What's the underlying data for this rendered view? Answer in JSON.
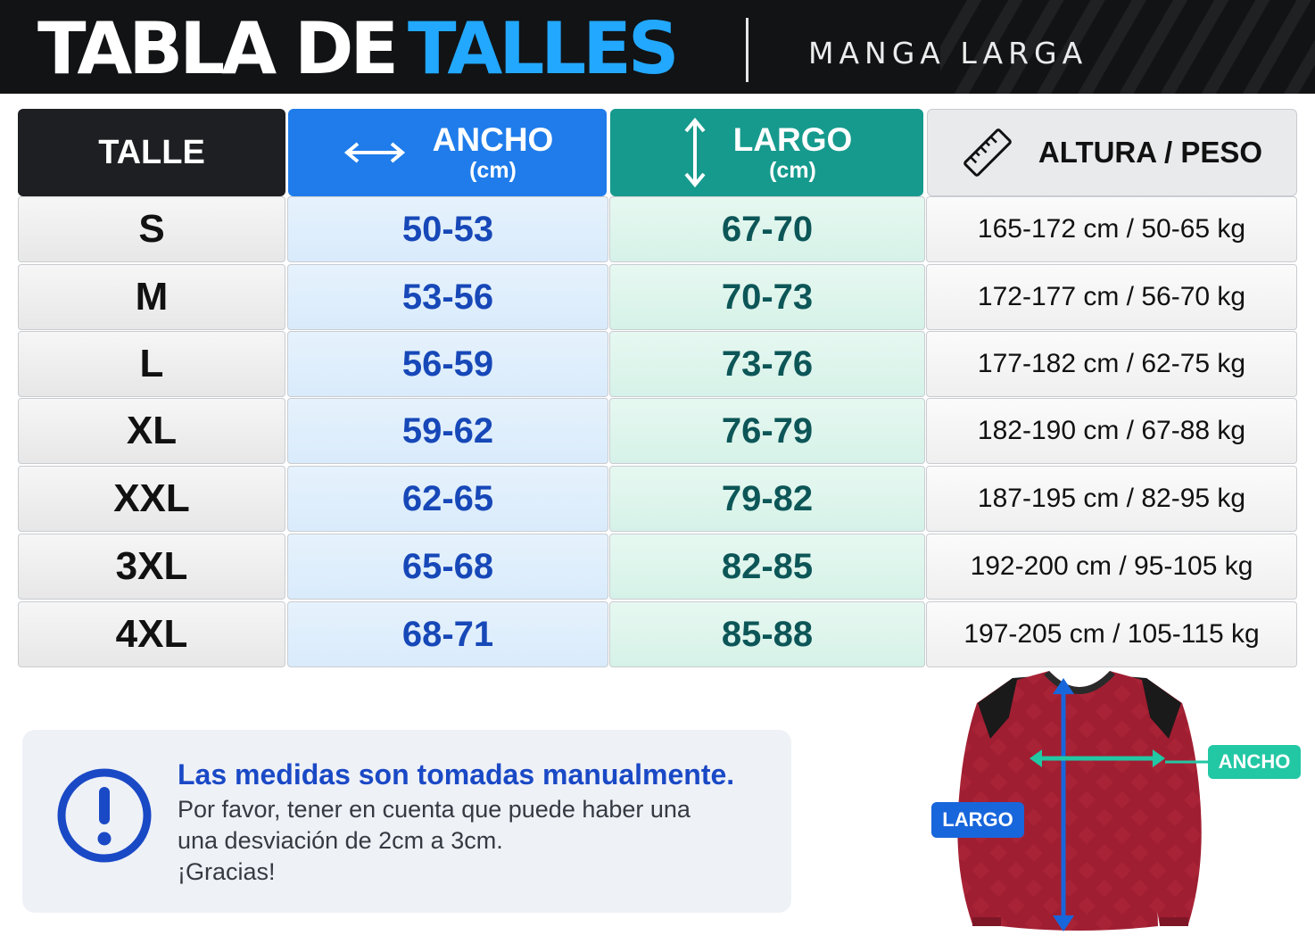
{
  "header": {
    "title_white": "TABLA DE",
    "title_blue": "TALLES",
    "subtitle": "MANGA LARGA"
  },
  "table": {
    "headers": {
      "talle": "TALLE",
      "ancho": "ANCHO",
      "ancho_unit": "(cm)",
      "largo": "LARGO",
      "largo_unit": "(cm)",
      "altura_peso": "ALTURA / PESO"
    },
    "rows": [
      {
        "talle": "S",
        "ancho": "50-53",
        "largo": "67-70",
        "altura_peso": "165-172 cm / 50-65 kg"
      },
      {
        "talle": "M",
        "ancho": "53-56",
        "largo": "70-73",
        "altura_peso": "172-177 cm / 56-70 kg"
      },
      {
        "talle": "L",
        "ancho": "56-59",
        "largo": "73-76",
        "altura_peso": "177-182 cm / 62-75 kg"
      },
      {
        "talle": "XL",
        "ancho": "59-62",
        "largo": "76-79",
        "altura_peso": "182-190 cm / 67-88 kg"
      },
      {
        "talle": "XXL",
        "ancho": "62-65",
        "largo": "79-82",
        "altura_peso": "187-195 cm / 82-95 kg"
      },
      {
        "talle": "3XL",
        "ancho": "65-68",
        "largo": "82-85",
        "altura_peso": "192-200 cm / 95-105 kg"
      },
      {
        "talle": "4XL",
        "ancho": "68-71",
        "largo": "85-88",
        "altura_peso": "197-205 cm / 105-115 kg"
      }
    ]
  },
  "note": {
    "title": "Las medidas son tomadas manualmente.",
    "line1": "Por favor, tener en cuenta que puede haber una",
    "line2": "una desviación de 2cm a 3cm.",
    "line3": "¡Gracias!",
    "icon": "exclamation-circle-icon"
  },
  "diagram": {
    "largo_label": "LARGO",
    "ancho_label": "ANCHO",
    "shirt_icon": "long-sleeve-jersey-illustration"
  },
  "colors": {
    "header_bg": "#111315",
    "title_accent": "#22a8ff",
    "ancho_header": "#1f7cea",
    "largo_header": "#169a8d",
    "ancho_text": "#1748b8",
    "largo_text": "#0d5658",
    "note_title": "#1a49c6",
    "shirt": "#a01e32",
    "largo_tag": "#1866db",
    "ancho_tag": "#22c7a4"
  }
}
